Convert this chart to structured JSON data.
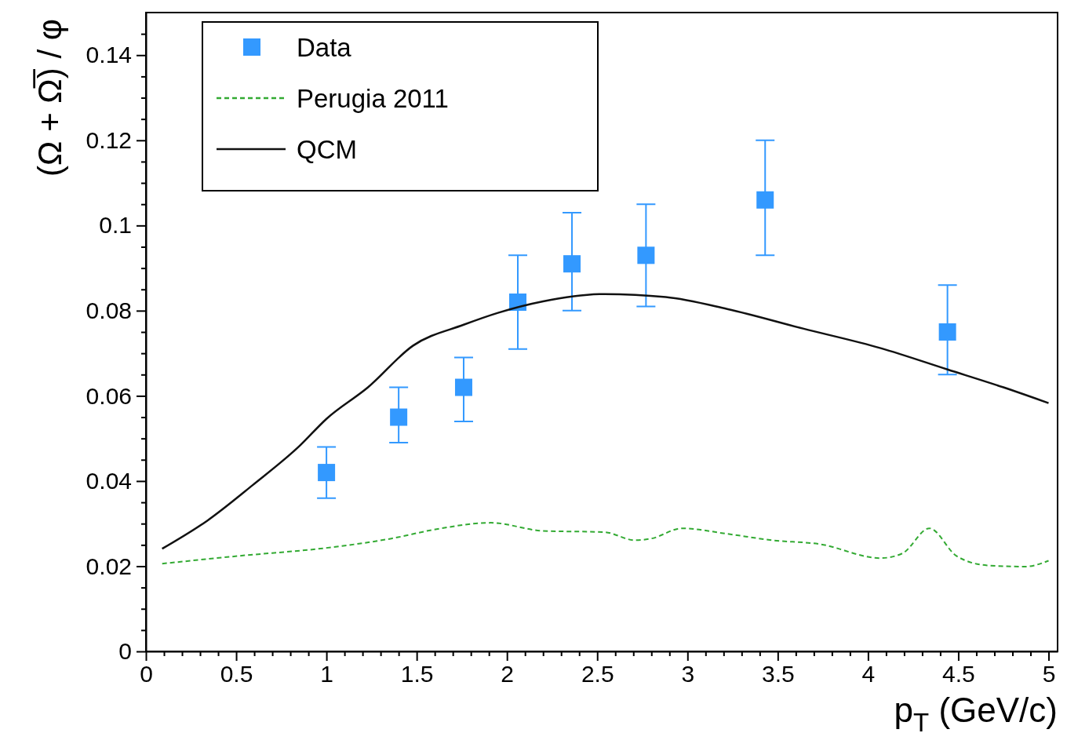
{
  "chart_data": {
    "type": "scatter",
    "xlabel": "p$_{T}$ (GeV/c)",
    "ylabel": "(Ω + Ω̅) / φ",
    "xlim": [
      0,
      5.05
    ],
    "ylim": [
      0,
      0.15
    ],
    "xticks": [
      0,
      {
        "value": 0.1,
        "label": null
      },
      {
        "value": 0.2,
        "label": null
      },
      {
        "value": 0.3,
        "label": null
      },
      {
        "value": 0.4,
        "label": null
      },
      0.5,
      {
        "value": 0.6,
        "label": null
      },
      {
        "value": 0.7,
        "label": null
      },
      {
        "value": 0.8,
        "label": null
      },
      {
        "value": 0.9,
        "label": null
      },
      1,
      {
        "value": 1.1,
        "label": null
      },
      {
        "value": 1.2,
        "label": null
      },
      {
        "value": 1.3,
        "label": null
      },
      {
        "value": 1.4,
        "label": null
      },
      1.5,
      {
        "value": 1.6,
        "label": null
      },
      {
        "value": 1.7,
        "label": null
      },
      {
        "value": 1.8,
        "label": null
      },
      {
        "value": 1.9,
        "label": null
      },
      2,
      {
        "value": 2.1,
        "label": null
      },
      {
        "value": 2.2,
        "label": null
      },
      {
        "value": 2.3,
        "label": null
      },
      {
        "value": 2.4,
        "label": null
      },
      2.5,
      {
        "value": 2.6,
        "label": null
      },
      {
        "value": 2.7,
        "label": null
      },
      {
        "value": 2.8,
        "label": null
      },
      {
        "value": 2.9,
        "label": null
      },
      3,
      {
        "value": 3.1,
        "label": null
      },
      {
        "value": 3.2,
        "label": null
      },
      {
        "value": 3.3,
        "label": null
      },
      {
        "value": 3.4,
        "label": null
      },
      3.5,
      {
        "value": 3.6,
        "label": null
      },
      {
        "value": 3.7,
        "label": null
      },
      {
        "value": 3.8,
        "label": null
      },
      {
        "value": 3.9,
        "label": null
      },
      4,
      {
        "value": 4.1,
        "label": null
      },
      {
        "value": 4.2,
        "label": null
      },
      {
        "value": 4.3,
        "label": null
      },
      {
        "value": 4.4,
        "label": null
      },
      4.5,
      {
        "value": 4.6,
        "label": null
      },
      {
        "value": 4.7,
        "label": null
      },
      {
        "value": 4.8,
        "label": null
      },
      {
        "value": 4.9,
        "label": null
      },
      5
    ],
    "yticks": [
      0,
      {
        "value": 0.005,
        "label": null
      },
      {
        "value": 0.01,
        "label": null
      },
      {
        "value": 0.015,
        "label": null
      },
      0.02,
      {
        "value": 0.025,
        "label": null
      },
      {
        "value": 0.03,
        "label": null
      },
      {
        "value": 0.035,
        "label": null
      },
      0.04,
      {
        "value": 0.045,
        "label": null
      },
      {
        "value": 0.05,
        "label": null
      },
      {
        "value": 0.055,
        "label": null
      },
      0.06,
      {
        "value": 0.065,
        "label": null
      },
      {
        "value": 0.07,
        "label": null
      },
      {
        "value": 0.075,
        "label": null
      },
      0.08,
      {
        "value": 0.085,
        "label": null
      },
      {
        "value": 0.09,
        "label": null
      },
      {
        "value": 0.095,
        "label": null
      },
      0.1,
      {
        "value": 0.105,
        "label": null
      },
      {
        "value": 0.11,
        "label": null
      },
      {
        "value": 0.115,
        "label": null
      },
      0.12,
      {
        "value": 0.125,
        "label": null
      },
      {
        "value": 0.13,
        "label": null
      },
      {
        "value": 0.135,
        "label": null
      },
      0.14,
      {
        "value": 0.145,
        "label": null
      }
    ],
    "legend": "top left",
    "grid": false,
    "series": [
      {
        "name": "Data",
        "marker": "square",
        "color": "#3399ff",
        "x": [
          1.0,
          1.4,
          1.76,
          2.06,
          2.36,
          2.77,
          3.43,
          4.44
        ],
        "values": [
          0.042,
          0.055,
          0.062,
          0.082,
          0.091,
          0.093,
          0.106,
          0.075
        ],
        "errors": [
          [
            0.036,
            0.048
          ],
          [
            0.049,
            0.062
          ],
          [
            0.054,
            0.069
          ],
          [
            0.071,
            0.093
          ],
          [
            0.08,
            0.103
          ],
          [
            0.081,
            0.105
          ],
          [
            0.093,
            0.12
          ],
          [
            0.065,
            0.086
          ]
        ]
      },
      {
        "name": "Perugia 2011",
        "type": "line",
        "marker": "none",
        "line_style": "dashed",
        "color": "#33aa33",
        "x": [
          0.09,
          0.51,
          1.0,
          1.36,
          1.61,
          1.91,
          2.2,
          2.54,
          2.71,
          2.8,
          2.97,
          3.22,
          3.47,
          3.73,
          4.07,
          4.19,
          4.34,
          4.49,
          4.66,
          4.87,
          5.0
        ],
        "values": [
          0.0206,
          0.0224,
          0.0243,
          0.0265,
          0.0287,
          0.0302,
          0.0283,
          0.028,
          0.0261,
          0.0265,
          0.0289,
          0.0276,
          0.0261,
          0.0252,
          0.0219,
          0.023,
          0.0289,
          0.0224,
          0.0202,
          0.0199,
          0.0213
        ]
      },
      {
        "name": "QCM",
        "type": "line",
        "marker": "none",
        "line_style": "solid",
        "color": "#111111",
        "x": [
          0.09,
          0.34,
          0.59,
          0.85,
          1.0,
          1.23,
          1.48,
          1.76,
          1.95,
          2.2,
          2.54,
          2.88,
          3.22,
          3.64,
          4.07,
          4.44,
          4.75,
          5.0
        ],
        "values": [
          0.0241,
          0.0307,
          0.039,
          0.0482,
          0.0546,
          0.062,
          0.0718,
          0.0767,
          0.0795,
          0.0822,
          0.0839,
          0.0832,
          0.0804,
          0.0758,
          0.0712,
          0.0662,
          0.062,
          0.0583
        ]
      }
    ]
  }
}
